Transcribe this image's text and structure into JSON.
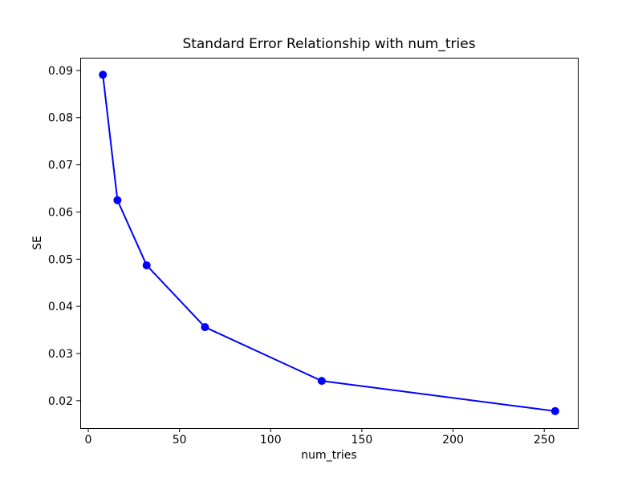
{
  "figure": {
    "background": "#ffffff",
    "spine_color": "#000000",
    "text_color": "#000000"
  },
  "chart_data": {
    "type": "line",
    "title": "Standard Error Relationship with num_tries",
    "xlabel": "num_tries",
    "ylabel": "SE",
    "x": [
      8,
      16,
      32,
      64,
      128,
      256
    ],
    "y": [
      0.0891,
      0.0625,
      0.0487,
      0.0356,
      0.0242,
      0.0178
    ],
    "line_color": "#0000ff",
    "marker": "o",
    "marker_color": "#0000ff",
    "xlim": [
      -4.4,
      268.4
    ],
    "ylim": [
      0.0142,
      0.0927
    ],
    "xticks": [
      0,
      50,
      100,
      150,
      200,
      250
    ],
    "xtick_labels": [
      "0",
      "50",
      "100",
      "150",
      "200",
      "250"
    ],
    "yticks": [
      0.02,
      0.03,
      0.04,
      0.05,
      0.06,
      0.07,
      0.08,
      0.09
    ],
    "ytick_labels": [
      "0.02",
      "0.03",
      "0.04",
      "0.05",
      "0.06",
      "0.07",
      "0.08",
      "0.09"
    ],
    "grid": false,
    "legend": null
  }
}
